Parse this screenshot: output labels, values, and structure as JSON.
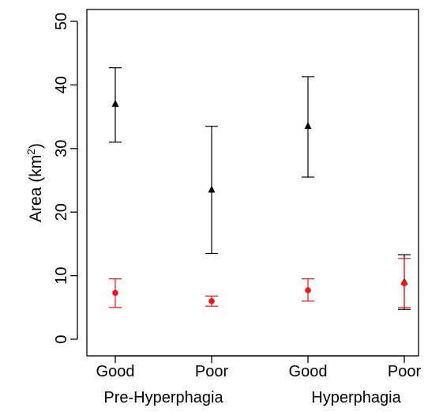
{
  "chart_data": {
    "type": "scatter",
    "title": "",
    "xlabel": "",
    "ylabel": "Area (km²)",
    "ylim": [
      0,
      50
    ],
    "yticks": [
      0,
      10,
      20,
      30,
      40,
      50
    ],
    "grid": false,
    "categories": [
      "Good",
      "Poor",
      "Good",
      "Poor"
    ],
    "groups": [
      {
        "label": "Pre-Hyperphagia",
        "categories": [
          "Good",
          "Poor"
        ]
      },
      {
        "label": "Hyperphagia",
        "categories": [
          "Good",
          "Poor"
        ]
      }
    ],
    "series": [
      {
        "marker": "triangle",
        "color": "#000000",
        "values": [
          37,
          23.5,
          33.5,
          9
        ],
        "lower": [
          31,
          13.5,
          25.5,
          4.7
        ],
        "upper": [
          42.7,
          33.5,
          41.3,
          13.3
        ]
      },
      {
        "marker": "circle",
        "color": "#e8161b",
        "values": [
          7.3,
          6,
          7.7,
          8.8
        ],
        "lower": [
          5,
          5.2,
          6,
          5
        ],
        "upper": [
          9.5,
          6.8,
          9.5,
          12.7
        ]
      }
    ]
  }
}
